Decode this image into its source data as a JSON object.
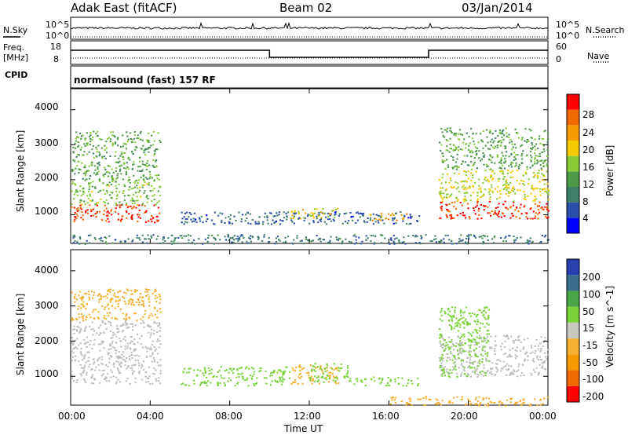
{
  "header": {
    "station": "Adak East (fitACF)",
    "beam": "Beam 02",
    "date": "03/Jan/2014"
  },
  "sky_panel": {
    "left_label": "N.Sky",
    "right_label": "N.Search",
    "left_ticks": [
      "10^5",
      "10^0"
    ],
    "right_ticks": [
      "10^5",
      "10^0"
    ]
  },
  "freq_panel": {
    "left_label_1": "Freq.",
    "left_label_2": "[MHz]",
    "right_label": "Nave",
    "left_ticks": [
      "18",
      "8"
    ],
    "right_ticks": [
      "60",
      "0"
    ]
  },
  "cpid": {
    "label": "CPID",
    "mode": "normalsound (fast) 157 RF"
  },
  "colors": {
    "scale": [
      "#0000ff",
      "#2b4ea8",
      "#3f7f68",
      "#4f9a48",
      "#8acb38",
      "#f5c800",
      "#f59a00",
      "#f06a00",
      "#ff0000"
    ],
    "velocity_scale": [
      "#ff0000",
      "#f06a00",
      "#f59a00",
      "#f5b030",
      "#c8c8c0",
      "#7bd13a",
      "#4aa548",
      "#3a6d8a",
      "#2a3fb0"
    ],
    "ground_scatter": "#bdbdbd"
  },
  "chart_data": [
    {
      "type": "heatmap",
      "name_hint": "power-panel",
      "ylabel": "Slant Range [km]",
      "xlabel": "",
      "yticks": [
        "1000",
        "2000",
        "3000",
        "4000"
      ],
      "xticks": [
        "00:00",
        "04:00",
        "08:00",
        "12:00",
        "16:00",
        "20:00",
        "00:00"
      ],
      "xlim": [
        0,
        24
      ],
      "ylim": [
        180,
        4600
      ],
      "colorbar": {
        "label": "Power [dB]",
        "ticks": [
          "4",
          "8",
          "12",
          "16",
          "20",
          "24",
          "28"
        ],
        "range": [
          0,
          30
        ]
      },
      "regions": [
        {
          "t0": 0.0,
          "t1": 4.5,
          "r0": 800,
          "r1": 1300,
          "level": 27
        },
        {
          "t0": 0.0,
          "t1": 4.5,
          "r0": 1300,
          "r1": 2000,
          "level": 14
        },
        {
          "t0": 0.0,
          "t1": 4.5,
          "r0": 2000,
          "r1": 3400,
          "level": 12
        },
        {
          "t0": 5.5,
          "t1": 17.5,
          "r0": 750,
          "r1": 1100,
          "level": 6
        },
        {
          "t0": 11.0,
          "t1": 13.5,
          "r0": 900,
          "r1": 1200,
          "level": 18
        },
        {
          "t0": 15.0,
          "t1": 17.0,
          "r0": 850,
          "r1": 1050,
          "level": 22
        },
        {
          "t0": 18.5,
          "t1": 24.0,
          "r0": 900,
          "r1": 1400,
          "level": 27
        },
        {
          "t0": 18.5,
          "t1": 24.0,
          "r0": 1400,
          "r1": 2300,
          "level": 17
        },
        {
          "t0": 18.5,
          "t1": 24.0,
          "r0": 2300,
          "r1": 3500,
          "level": 12
        },
        {
          "t0": 0.0,
          "t1": 24.0,
          "r0": 180,
          "r1": 450,
          "level": 8
        }
      ]
    },
    {
      "type": "heatmap",
      "name_hint": "velocity-panel",
      "ylabel": "Slant Range [km]",
      "xlabel": "Time UT",
      "yticks": [
        "1000",
        "2000",
        "3000",
        "4000"
      ],
      "xticks": [
        "00:00",
        "04:00",
        "08:00",
        "12:00",
        "16:00",
        "20:00",
        "00:00"
      ],
      "xlim": [
        0,
        24
      ],
      "ylim": [
        180,
        4600
      ],
      "colorbar": {
        "label": "Velocity [m s^-1]",
        "ticks": [
          "-200",
          "-100",
          "-50",
          "-15",
          "15",
          "50",
          "100",
          "200"
        ],
        "range": [
          -250,
          250
        ]
      },
      "regions": [
        {
          "t0": 0.0,
          "t1": 4.5,
          "r0": 800,
          "r1": 2600,
          "level": 0
        },
        {
          "t0": 0.0,
          "t1": 4.5,
          "r0": 2600,
          "r1": 3500,
          "level": -40
        },
        {
          "t0": 5.5,
          "t1": 11.0,
          "r0": 750,
          "r1": 1300,
          "level": 40
        },
        {
          "t0": 11.0,
          "t1": 13.5,
          "r0": 800,
          "r1": 1350,
          "level": -60
        },
        {
          "t0": 12.0,
          "t1": 14.0,
          "r0": 850,
          "r1": 1400,
          "level": 50
        },
        {
          "t0": 14.0,
          "t1": 17.5,
          "r0": 750,
          "r1": 1000,
          "level": 40
        },
        {
          "t0": 16.0,
          "t1": 24.0,
          "r0": 180,
          "r1": 450,
          "level": -70
        },
        {
          "t0": 18.5,
          "t1": 24.0,
          "r0": 1000,
          "r1": 2200,
          "level": 0
        },
        {
          "t0": 18.5,
          "t1": 21.0,
          "r0": 1000,
          "r1": 3000,
          "level": 40
        }
      ]
    }
  ]
}
